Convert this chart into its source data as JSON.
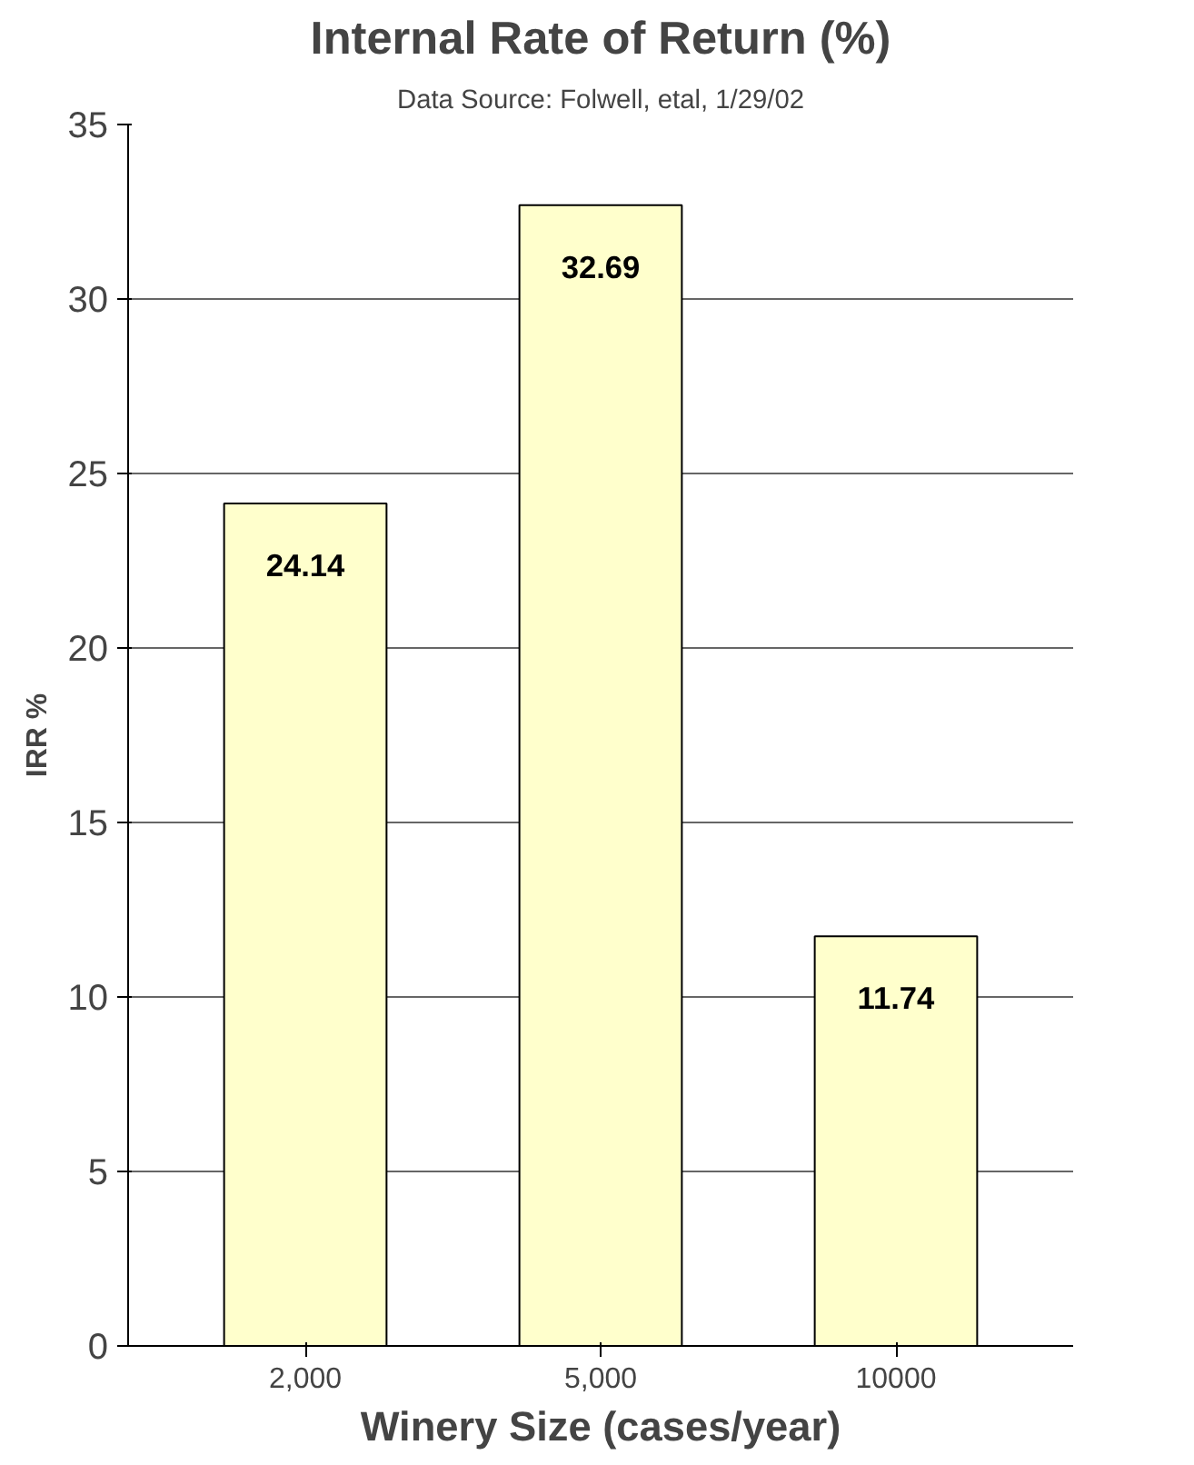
{
  "chart_data": {
    "type": "bar",
    "title": "Internal Rate of Return (%)",
    "subtitle": "Data Source: Folwell, etal, 1/29/02",
    "xlabel": "Winery Size (cases/year)",
    "ylabel": "IRR %",
    "categories": [
      "2,000",
      "5,000",
      "10000"
    ],
    "values": [
      24.14,
      32.69,
      11.74
    ],
    "color": "#ffffcc",
    "ylim": [
      0,
      35
    ],
    "yticks": [
      0,
      5,
      10,
      15,
      20,
      25,
      30,
      35
    ],
    "grid": "y",
    "data_labels": true
  }
}
